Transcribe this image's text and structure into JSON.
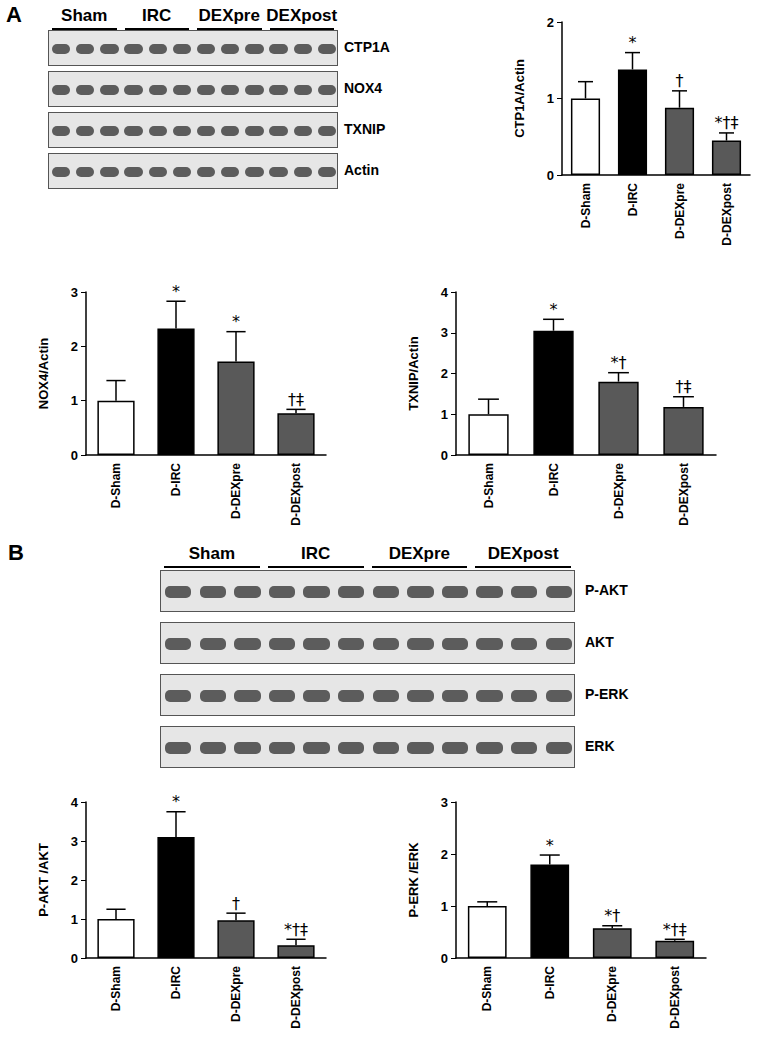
{
  "blots": [
    {
      "panel": "A",
      "groups": [
        "Sham",
        "IRC",
        "DEXpre",
        "DEXpost"
      ],
      "rows": [
        "CTP1A",
        "NOX4",
        "TXNIP",
        "Actin"
      ]
    },
    {
      "panel": "B",
      "groups": [
        "Sham",
        "IRC",
        "DEXpre",
        "DEXpost"
      ],
      "rows": [
        "P-AKT",
        "AKT",
        "P-ERK",
        "ERK"
      ]
    }
  ],
  "chart_data": [
    {
      "type": "bar",
      "ylabel": "CTP1A/Actin",
      "categories": [
        "D-Sham",
        "D-IRC",
        "D-DEXpre",
        "D-DEXpost"
      ],
      "values": [
        1.0,
        1.38,
        0.88,
        0.45
      ],
      "errors": [
        0.22,
        0.22,
        0.22,
        0.1
      ],
      "annotations": [
        null,
        "*",
        "†",
        "*†‡"
      ],
      "colors": [
        "#ffffff",
        "#000000",
        "#595959",
        "#595959"
      ],
      "ylim": [
        0,
        2
      ],
      "yticks": [
        0,
        1,
        2
      ],
      "grid": false
    },
    {
      "type": "bar",
      "ylabel": "NOX4/Actin",
      "categories": [
        "D-Sham",
        "D-IRC",
        "D-DEXpre",
        "D-DEXpost"
      ],
      "values": [
        1.0,
        2.33,
        1.72,
        0.77
      ],
      "errors": [
        0.37,
        0.5,
        0.55,
        0.07
      ],
      "annotations": [
        null,
        "*",
        "*",
        "†‡"
      ],
      "colors": [
        "#ffffff",
        "#000000",
        "#595959",
        "#595959"
      ],
      "ylim": [
        0,
        3
      ],
      "yticks": [
        0,
        1,
        2,
        3
      ],
      "grid": false
    },
    {
      "type": "bar",
      "ylabel": "TXNIP/Actin",
      "categories": [
        "D-Sham",
        "D-IRC",
        "D-DEXpre",
        "D-DEXpost"
      ],
      "values": [
        1.0,
        3.05,
        1.8,
        1.18
      ],
      "errors": [
        0.37,
        0.28,
        0.22,
        0.25
      ],
      "annotations": [
        null,
        "*",
        "*†",
        "†‡"
      ],
      "colors": [
        "#ffffff",
        "#000000",
        "#595959",
        "#595959"
      ],
      "ylim": [
        0,
        4
      ],
      "yticks": [
        0,
        1,
        2,
        3,
        4
      ],
      "grid": false
    },
    {
      "type": "bar",
      "ylabel": "P-AKT /AKT",
      "categories": [
        "D-Sham",
        "D-IRC",
        "D-DEXpre",
        "D-DEXpost"
      ],
      "values": [
        1.0,
        3.1,
        0.97,
        0.33
      ],
      "errors": [
        0.25,
        0.65,
        0.18,
        0.15
      ],
      "annotations": [
        null,
        "*",
        "†",
        "*†‡"
      ],
      "colors": [
        "#ffffff",
        "#000000",
        "#595959",
        "#595959"
      ],
      "ylim": [
        0,
        4
      ],
      "yticks": [
        0,
        1,
        2,
        3,
        4
      ],
      "grid": false
    },
    {
      "type": "bar",
      "ylabel": "P-ERK /ERK",
      "categories": [
        "D-Sham",
        "D-IRC",
        "D-DEXpre",
        "D-DEXpost"
      ],
      "values": [
        1.0,
        1.8,
        0.57,
        0.33
      ],
      "errors": [
        0.08,
        0.18,
        0.05,
        0.03
      ],
      "annotations": [
        null,
        "*",
        "*†",
        "*†‡"
      ],
      "colors": [
        "#ffffff",
        "#000000",
        "#595959",
        "#595959"
      ],
      "ylim": [
        0,
        3
      ],
      "yticks": [
        0,
        1,
        2,
        3
      ],
      "grid": false
    }
  ]
}
